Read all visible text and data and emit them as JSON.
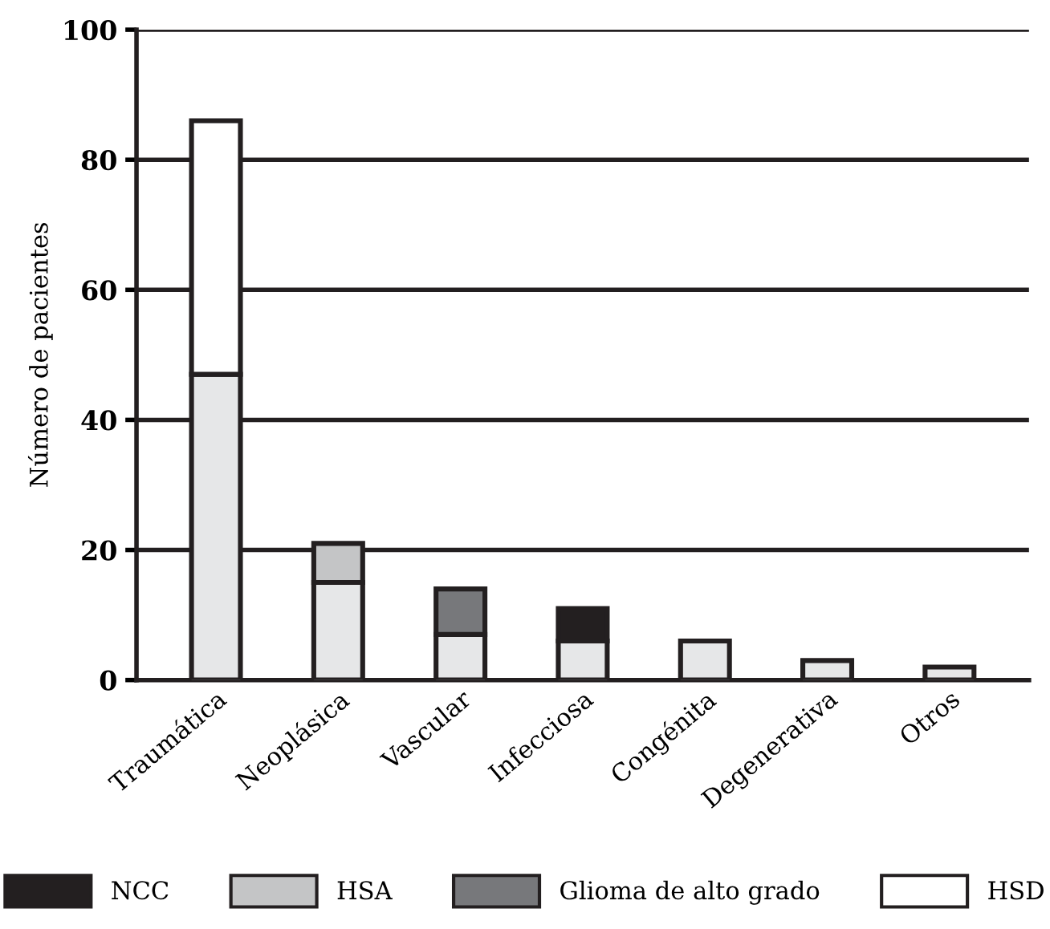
{
  "chart_data": {
    "type": "bar",
    "stacked": true,
    "ylabel": "Número de pacientes",
    "categories": [
      "Traumática",
      "Neoplásica",
      "Vascular",
      "Infecciosa",
      "Congénita",
      "Degenerativa",
      "Otros"
    ],
    "series": [
      {
        "color": "#e6e7e8",
        "values": [
          47,
          15,
          7,
          6,
          6,
          3,
          2
        ]
      },
      {
        "name": "NCC",
        "color": "#231f20",
        "values": [
          null,
          null,
          null,
          5,
          null,
          null,
          null
        ]
      },
      {
        "name": "HSA",
        "color": "#c4c5c6",
        "values": [
          null,
          6,
          null,
          null,
          null,
          null,
          null
        ]
      },
      {
        "name": "Glioma de alto grado",
        "color": "#77787b",
        "values": [
          null,
          null,
          7,
          null,
          null,
          null,
          null
        ]
      },
      {
        "name": "HSD",
        "color": "#ffffff",
        "values": [
          39,
          null,
          null,
          null,
          null,
          null,
          null
        ]
      }
    ],
    "ylim": [
      0,
      100
    ],
    "yticks": [
      0,
      20,
      40,
      60,
      80,
      100
    ],
    "grid": "y",
    "legend": "bottom"
  }
}
